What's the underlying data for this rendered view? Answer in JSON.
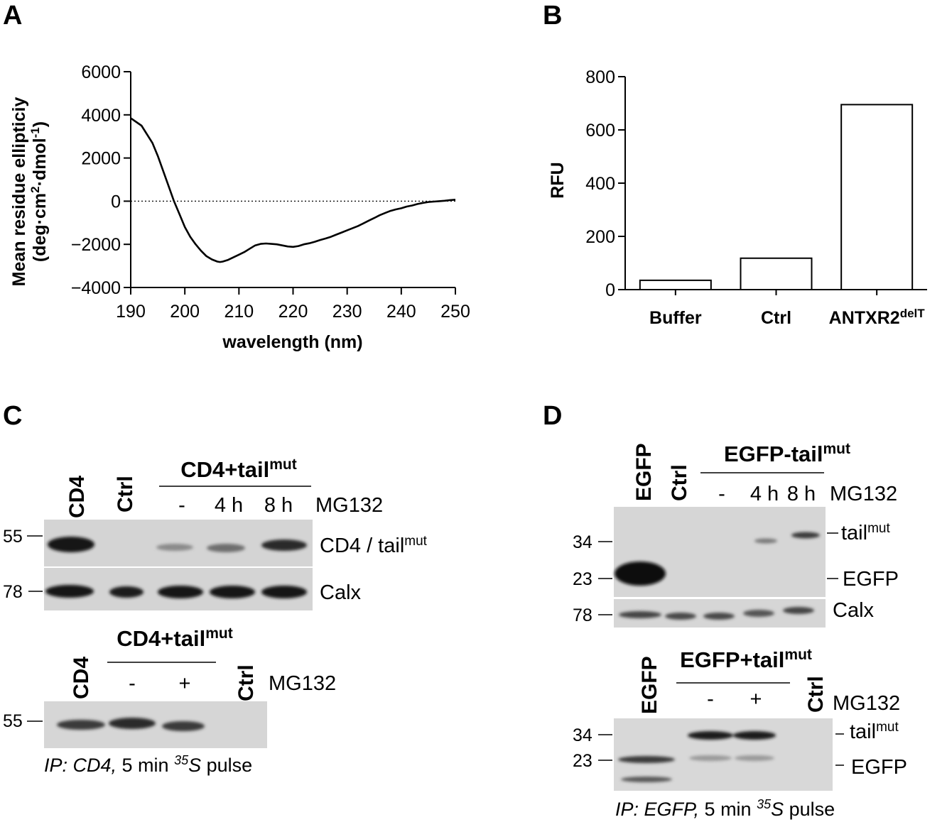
{
  "panels": {
    "A": {
      "letter": "A",
      "chart_data": {
        "type": "line",
        "title": "",
        "xlabel": "wavelength (nm)",
        "ylabel_line1": "Mean residue ellipticiy",
        "ylabel_line2_base": "(deg·cm",
        "ylabel_line2_sup1": "2",
        "ylabel_line2_mid": "·dmol",
        "ylabel_line2_sup2": "-1",
        "ylabel_line2_end": ")",
        "xlim": [
          190,
          250
        ],
        "ylim": [
          -4000,
          6000
        ],
        "xticks": [
          190,
          200,
          210,
          220,
          230,
          240,
          250
        ],
        "yticks": [
          -4000,
          -2000,
          0,
          2000,
          4000,
          6000
        ],
        "ytick_labels": [
          "−4000",
          "−2000",
          "0",
          "2000",
          "4000",
          "6000"
        ],
        "zero_line": "dotted",
        "series": [
          {
            "x": [
              190,
              192,
              194,
              195,
              196,
              197,
              198,
              199,
              200,
              201,
              202,
              203,
              204,
              205,
              206,
              206.5,
              207,
              208,
              209,
              210,
              211,
              212,
              213,
              214,
              215,
              216,
              217,
              218,
              219,
              220,
              221,
              222,
              223,
              224,
              225,
              226,
              227,
              228,
              229,
              230,
              231,
              232,
              233,
              234,
              235,
              236,
              237,
              238,
              239,
              240,
              241,
              242,
              243,
              244,
              245,
              246,
              247,
              248,
              249,
              250
            ],
            "y": [
              3850,
              3500,
              2700,
              2100,
              1400,
              700,
              0,
              -600,
              -1200,
              -1650,
              -2000,
              -2300,
              -2550,
              -2700,
              -2800,
              -2820,
              -2800,
              -2720,
              -2600,
              -2480,
              -2360,
              -2200,
              -2050,
              -1980,
              -1960,
              -1980,
              -2000,
              -2050,
              -2100,
              -2120,
              -2080,
              -2000,
              -1950,
              -1880,
              -1800,
              -1730,
              -1650,
              -1550,
              -1450,
              -1350,
              -1250,
              -1150,
              -1030,
              -900,
              -780,
              -650,
              -550,
              -450,
              -380,
              -330,
              -250,
              -200,
              -130,
              -80,
              -40,
              -20,
              0,
              20,
              50,
              70
            ]
          }
        ]
      }
    },
    "B": {
      "letter": "B",
      "chart_data": {
        "type": "bar",
        "title": "",
        "xlabel": "",
        "ylabel": "RFU",
        "ylim": [
          0,
          800
        ],
        "yticks": [
          0,
          200,
          400,
          600,
          800
        ],
        "categories": [
          "Buffer",
          "Ctrl",
          "ANTXR2"
        ],
        "category_superscripts": [
          "",
          "",
          "delT"
        ],
        "values": [
          35,
          118,
          695
        ],
        "bar_fill": "#ffffff",
        "bar_edge": "#000000"
      }
    },
    "C": {
      "letter": "C",
      "top": {
        "lanes": [
          "CD4",
          "Ctrl"
        ],
        "group_label": "CD4+tail",
        "group_sup": "mut",
        "treat": [
          "-",
          "4 h",
          "8 h"
        ],
        "treat_label": "MG132",
        "mw": [
          "55",
          "78"
        ],
        "band_label_1": "CD4 / tail",
        "band_label_1_sup": "mut",
        "band_label_2": "Calx"
      },
      "bottom": {
        "lane_1": "CD4",
        "group_label": "CD4+tail",
        "group_sup": "mut",
        "treat": [
          "-",
          "+"
        ],
        "lane_last": "Ctrl",
        "treat_label": "MG132",
        "mw": [
          "55"
        ],
        "caption_ip": "IP: CD4,",
        "caption_time": " 5 min ",
        "caption_sup": "35",
        "caption_s": "S",
        "caption_end": " pulse"
      }
    },
    "D": {
      "letter": "D",
      "top": {
        "lanes": [
          "EGFP",
          "Ctrl"
        ],
        "group_label": "EGFP-tail",
        "group_sup": "mut",
        "treat": [
          "-",
          "4 h",
          "8 h"
        ],
        "treat_label": "MG132",
        "mw": [
          "34",
          "23",
          "78"
        ],
        "band_tail": "tail",
        "band_tail_sup": "mut",
        "band_egfp": "EGFP",
        "band_calx": "Calx"
      },
      "bottom": {
        "lane_1": "EGFP",
        "group_label": "EGFP+tail",
        "group_sup": "mut",
        "treat": [
          "-",
          "+"
        ],
        "lane_last": "Ctrl",
        "treat_label": "MG132",
        "mw": [
          "34",
          "23"
        ],
        "band_tail": "tail",
        "band_tail_sup": "mut",
        "band_egfp": "EGFP",
        "caption_ip": "IP: EGFP,",
        "caption_time": " 5 min ",
        "caption_sup": "35",
        "caption_s": "S",
        "caption_end": " pulse"
      }
    }
  }
}
